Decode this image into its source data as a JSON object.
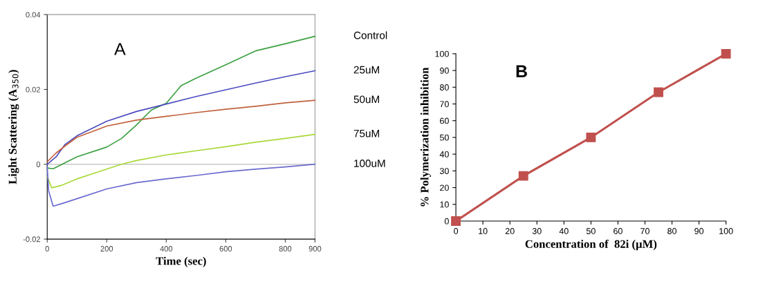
{
  "chart_data": [
    {
      "type": "line",
      "xlabel": "Time (sec)",
      "ylabel": "Light Scattering (A$_{350}$)",
      "annotations": [
        "A"
      ],
      "xlim": [
        0,
        900
      ],
      "xticks": [
        0,
        200,
        400,
        600,
        800,
        900
      ],
      "ylim": [
        -0.02,
        0.04
      ],
      "yticks": [
        {
          "value": -0.02,
          "label": "-0.02"
        },
        {
          "value": 0,
          "label": "0"
        },
        {
          "value": 0.02,
          "label": "0.02"
        },
        {
          "value": 0.04,
          "label": "0.04"
        }
      ],
      "grid": false,
      "legend": "right",
      "marker": "none",
      "line_style": "solid",
      "ref_lines": [
        {
          "axis": "y",
          "value": 0,
          "color": "#c8c8c8"
        }
      ],
      "series": [
        {
          "name": "Control",
          "color": "#3aa040",
          "x": [
            0,
            20,
            100,
            200,
            250,
            300,
            350,
            400,
            450,
            500,
            600,
            700,
            800,
            900
          ],
          "values": [
            -0.001,
            -0.0012,
            0.002,
            0.0046,
            0.0069,
            0.0105,
            0.0145,
            0.0163,
            0.021,
            0.023,
            0.0266,
            0.0303,
            0.0322,
            0.0342
          ]
        },
        {
          "name": "25uM",
          "color": "#4a4ac0",
          "x": [
            0,
            30,
            60,
            100,
            200,
            300,
            400,
            500,
            600,
            700,
            800,
            900
          ],
          "values": [
            0,
            0.002,
            0.0053,
            0.0076,
            0.0115,
            0.0141,
            0.0161,
            0.0181,
            0.0199,
            0.0217,
            0.0234,
            0.025
          ]
        },
        {
          "name": "50uM",
          "color": "#c0603a",
          "x": [
            0,
            30,
            60,
            100,
            200,
            300,
            400,
            500,
            600,
            700,
            800,
            900
          ],
          "values": [
            0.0007,
            0.003,
            0.0049,
            0.0072,
            0.0102,
            0.0118,
            0.0128,
            0.0138,
            0.0147,
            0.0155,
            0.0164,
            0.0171
          ]
        },
        {
          "name": "75uM",
          "color": "#a8d838",
          "x": [
            0,
            15,
            50,
            100,
            200,
            250,
            300,
            400,
            500,
            600,
            700,
            800,
            900
          ],
          "values": [
            -0.0033,
            -0.0063,
            -0.0056,
            -0.0039,
            -0.0013,
            0,
            0.001,
            0.0025,
            0.0036,
            0.0047,
            0.0059,
            0.0069,
            0.008
          ]
        },
        {
          "name": "100uM",
          "color": "#6a6ad0",
          "x": [
            0,
            5,
            20,
            50,
            100,
            200,
            300,
            400,
            500,
            600,
            700,
            800,
            900
          ],
          "values": [
            -0.0007,
            -0.0072,
            -0.0112,
            -0.0105,
            -0.0092,
            -0.0066,
            -0.0049,
            -0.0039,
            -0.003,
            -0.002,
            -0.0013,
            -0.0007,
            0
          ]
        }
      ]
    },
    {
      "type": "line",
      "xlabel": "Concentration of  82i (µM)",
      "ylabel": "% Polymerization inhibition",
      "annotations": [
        "B"
      ],
      "x": [
        0,
        25,
        50,
        75,
        100
      ],
      "xlim": [
        0,
        100
      ],
      "xticks": [
        0,
        10,
        20,
        30,
        40,
        50,
        60,
        70,
        80,
        90,
        100
      ],
      "ylim": [
        0,
        100
      ],
      "yticks": [
        0,
        10,
        20,
        30,
        40,
        50,
        60,
        70,
        80,
        90,
        100
      ],
      "grid": false,
      "marker": "square",
      "line_style": "solid",
      "series": [
        {
          "color": "#c0504d",
          "values": [
            0,
            27,
            50,
            77,
            100
          ]
        }
      ]
    }
  ]
}
